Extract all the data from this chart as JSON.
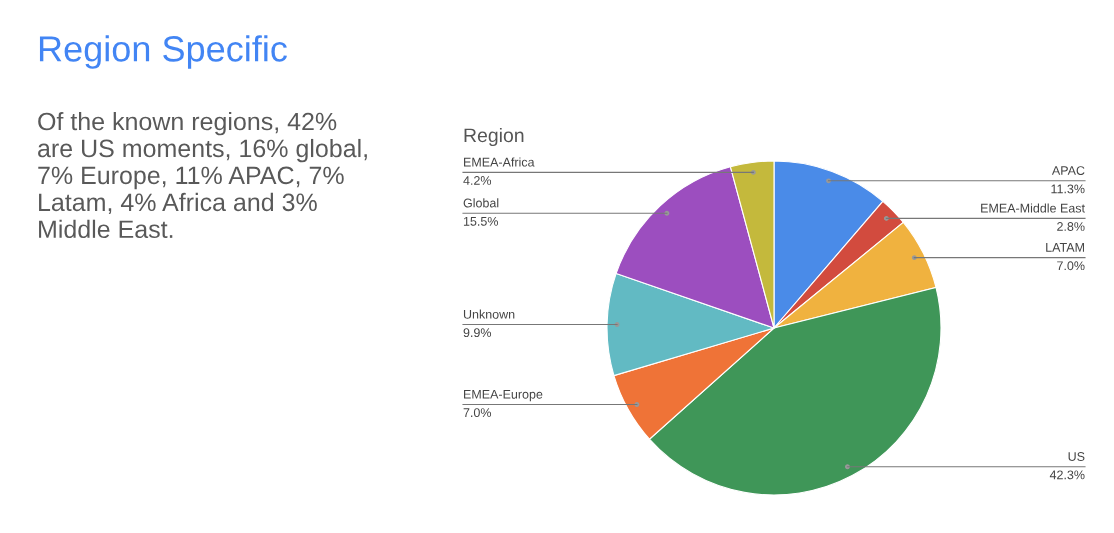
{
  "chart_data": {
    "type": "pie",
    "title": "Region Specific",
    "subtitle": "Region",
    "annotations": [
      "Of the known regions, 42%\nare US moments, 16% global,\n7% Europe, 11% APAC, 7%\nLatam, 4% Africa and 3%\nMiddle East."
    ],
    "categories": [
      "APAC",
      "EMEA-Middle East",
      "LATAM",
      "US",
      "EMEA-Europe",
      "Unknown",
      "Global",
      "EMEA-Africa"
    ],
    "values": [
      11.3,
      2.8,
      7.0,
      42.3,
      7.0,
      9.9,
      15.5,
      4.2
    ],
    "value_labels": [
      "11.3%",
      "2.8%",
      "7.0%",
      "42.3%",
      "7.0%",
      "9.9%",
      "15.5%",
      "4.2%"
    ],
    "colors": [
      "#4a8be8",
      "#d24b3e",
      "#f0b23f",
      "#3f9658",
      "#ef7337",
      "#62bac3",
      "#9c4ebf",
      "#c4b93c"
    ],
    "legend": false
  }
}
